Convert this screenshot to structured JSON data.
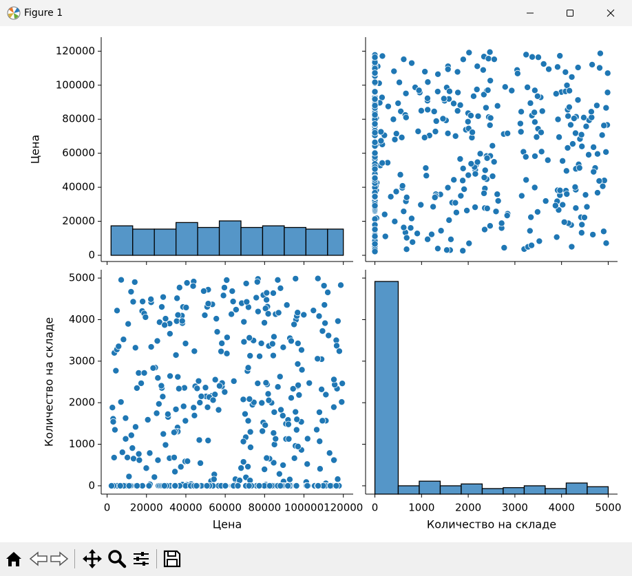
{
  "window": {
    "title": "Figure 1",
    "controls": {
      "minimize": "minimize-icon",
      "maximize": "maximize-icon",
      "close": "close-icon"
    }
  },
  "toolbar": {
    "buttons": [
      {
        "name": "home",
        "icon": "home-icon"
      },
      {
        "name": "back",
        "icon": "arrow-left-icon"
      },
      {
        "name": "forward",
        "icon": "arrow-right-icon"
      },
      {
        "name": "pan",
        "icon": "move-icon"
      },
      {
        "name": "zoom",
        "icon": "magnifier-icon"
      },
      {
        "name": "configure",
        "icon": "sliders-icon"
      },
      {
        "name": "save",
        "icon": "floppy-icon"
      }
    ]
  },
  "colors": {
    "marker": "#1f77b4",
    "bar_fill": "#5596c8",
    "bar_edge": "#000000"
  },
  "chart_data": [
    {
      "panel": "top-left",
      "type": "bar",
      "variable": "Цена",
      "ylabel": "Цена",
      "xlabel": "",
      "bins": [
        {
          "x0": 2000,
          "x1": 13000,
          "count": 18
        },
        {
          "x0": 13000,
          "x1": 24000,
          "count": 16
        },
        {
          "x0": 24000,
          "x1": 35000,
          "count": 16
        },
        {
          "x0": 35000,
          "x1": 46000,
          "count": 20
        },
        {
          "x0": 46000,
          "x1": 57000,
          "count": 17
        },
        {
          "x0": 57000,
          "x1": 68000,
          "count": 21
        },
        {
          "x0": 68000,
          "x1": 79000,
          "count": 17
        },
        {
          "x0": 79000,
          "x1": 90000,
          "count": 18
        },
        {
          "x0": 90000,
          "x1": 101000,
          "count": 17
        },
        {
          "x0": 101000,
          "x1": 112000,
          "count": 16
        },
        {
          "x0": 112000,
          "x1": 120000,
          "count": 16
        }
      ],
      "ylim": [
        0,
        125000
      ],
      "yticks": [
        "0",
        "20000",
        "40000",
        "60000",
        "80000",
        "100000",
        "120000"
      ]
    },
    {
      "panel": "top-right",
      "type": "scatter",
      "x_variable": "Количество на складе",
      "y_variable": "Цена",
      "xlim": [
        -200,
        5200
      ],
      "ylim": [
        -2000,
        125000
      ],
      "notes": "about 200 points stacked along x=0 across all y; the rest spread uniformly over x 0–5000, y 2000–120000"
    },
    {
      "panel": "bottom-left",
      "type": "scatter",
      "x_variable": "Цена",
      "y_variable": "Количество на складе",
      "ylabel": "Количество на складе",
      "xlabel": "Цена",
      "xlim": [
        -3000,
        125000
      ],
      "ylim": [
        -200,
        5200
      ],
      "xticks": [
        "0",
        "20000",
        "40000",
        "60000",
        "80000",
        "100000",
        "120000"
      ],
      "yticks": [
        "0",
        "1000",
        "2000",
        "3000",
        "4000",
        "5000"
      ],
      "notes": "about 200 points stacked along y=0 across all x; the rest spread uniformly"
    },
    {
      "panel": "bottom-right",
      "type": "bar",
      "variable": "Количество на складе",
      "xlabel": "Количество на складе",
      "bins": [
        {
          "x0": 0,
          "x1": 500,
          "count": 230
        },
        {
          "x0": 500,
          "x1": 950,
          "count": 9
        },
        {
          "x0": 950,
          "x1": 1400,
          "count": 14
        },
        {
          "x0": 1400,
          "x1": 1850,
          "count": 9
        },
        {
          "x0": 1850,
          "x1": 2300,
          "count": 11
        },
        {
          "x0": 2300,
          "x1": 2750,
          "count": 6
        },
        {
          "x0": 2750,
          "x1": 3200,
          "count": 7
        },
        {
          "x0": 3200,
          "x1": 3650,
          "count": 9
        },
        {
          "x0": 3650,
          "x1": 4100,
          "count": 6
        },
        {
          "x0": 4100,
          "x1": 4550,
          "count": 12
        },
        {
          "x0": 4550,
          "x1": 5000,
          "count": 8
        }
      ],
      "xlim": [
        -200,
        5200
      ],
      "xticks": [
        "0",
        "1000",
        "2000",
        "3000",
        "4000",
        "5000"
      ]
    }
  ]
}
